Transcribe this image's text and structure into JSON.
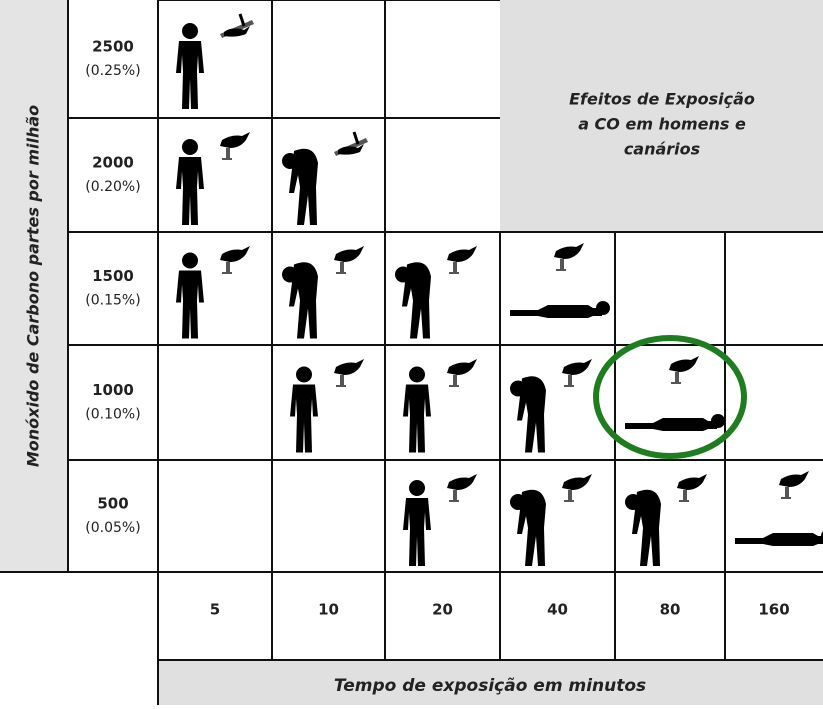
{
  "y_axis_label": "Monóxido de Carbono partes por milhão",
  "rows": [
    {
      "ppm": "2500",
      "percent": "(0.25%)"
    },
    {
      "ppm": "2000",
      "percent": "(0.20%)"
    },
    {
      "ppm": "1500",
      "percent": "(0.15%)"
    },
    {
      "ppm": "1000",
      "percent": "(0.10%)"
    },
    {
      "ppm": "500",
      "percent": "(0.05%)"
    }
  ],
  "columns": [
    "5",
    "10",
    "20",
    "40",
    "80",
    "160"
  ],
  "x_axis_label": "Tempo de exposição em minutos",
  "title_lines": [
    "Efeitos de Exposição",
    "a CO em homens e",
    "canários"
  ]
}
